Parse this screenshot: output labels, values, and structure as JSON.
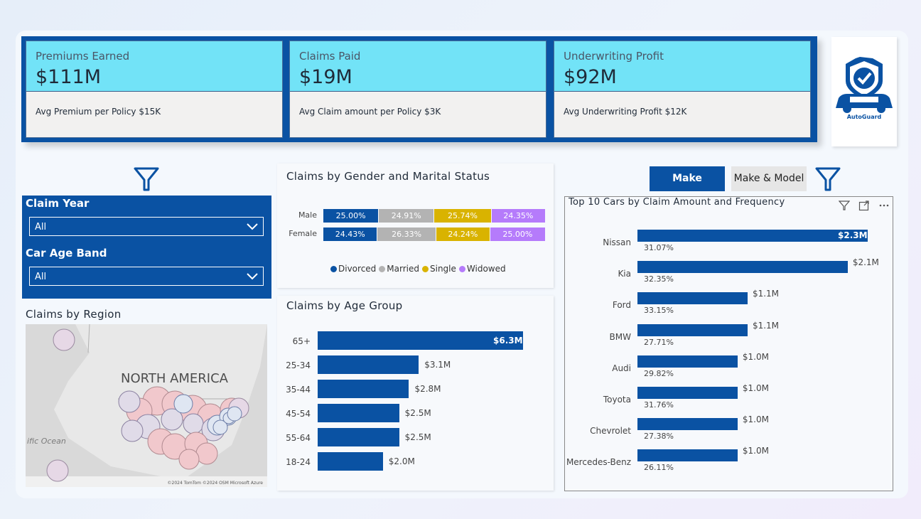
{
  "kpis": [
    {
      "title": "Premiums Earned",
      "value": "$111M",
      "sub": "Avg Premium per Policy $15K"
    },
    {
      "title": "Claims Paid",
      "value": "$19M",
      "sub": "Avg Claim amount per Policy $3K"
    },
    {
      "title": "Underwriting Profit",
      "value": "$92M",
      "sub": "Avg Underwriting Profit $12K"
    }
  ],
  "logo": {
    "text": "AutoGuard",
    "icon": "shield-car-check-icon"
  },
  "filters": {
    "claim_year_label": "Claim Year",
    "claim_year_value": "All",
    "car_age_label": "Car Age Band",
    "car_age_value": "All"
  },
  "region": {
    "title": "Claims by Region",
    "map_label": "NORTH AMERICA",
    "ocean_label": "ific Ocean",
    "credit": "©2024 TomTom ©2024 OSM  Microsoft Azure"
  },
  "gender_marital": {
    "title": "Claims by Gender and Marital Status",
    "rows": [
      {
        "label": "Male",
        "values": [
          "25.00%",
          "24.91%",
          "25.74%",
          "24.35%"
        ],
        "nums": [
          25.0,
          24.91,
          25.74,
          24.35
        ]
      },
      {
        "label": "Female",
        "values": [
          "24.43%",
          "26.33%",
          "24.24%",
          "25.00%"
        ],
        "nums": [
          24.43,
          26.33,
          24.24,
          25.0
        ]
      }
    ],
    "legend": [
      {
        "name": "Divorced",
        "color": "#0a52a3"
      },
      {
        "name": "Married",
        "color": "#b3b3b3"
      },
      {
        "name": "Single",
        "color": "#d9b300"
      },
      {
        "name": "Widowed",
        "color": "#b57bfb"
      }
    ]
  },
  "age_group": {
    "title": "Claims by Age Group",
    "labels": [
      "65+",
      "25-34",
      "35-44",
      "45-54",
      "55-64",
      "18-24"
    ],
    "value_labels": [
      "$6.3M",
      "$3.1M",
      "$2.8M",
      "$2.5M",
      "$2.5M",
      "$2.0M"
    ],
    "values": [
      6.3,
      3.1,
      2.8,
      2.5,
      2.5,
      2.0
    ]
  },
  "toggle": {
    "make": "Make",
    "make_model": "Make & Model"
  },
  "top_cars": {
    "title": "Top 10 Cars by Claim Amount and Frequency",
    "labels": [
      "Nissan",
      "Kia",
      "Ford",
      "BMW",
      "Audi",
      "Toyota",
      "Chevrolet",
      "Mercedes-Benz"
    ],
    "value_labels": [
      "$2.3M",
      "$2.1M",
      "$1.1M",
      "$1.1M",
      "$1.0M",
      "$1.0M",
      "$1.0M",
      "$1.0M"
    ],
    "values": [
      2.3,
      2.1,
      1.1,
      1.1,
      1.0,
      1.0,
      1.0,
      1.0
    ],
    "pcts": [
      "31.07%",
      "32.35%",
      "33.15%",
      "27.71%",
      "29.82%",
      "31.76%",
      "27.38%",
      "26.11%"
    ]
  },
  "colors": {
    "accent": "#0a52a3",
    "kpi_header": "#72e3f7"
  }
}
